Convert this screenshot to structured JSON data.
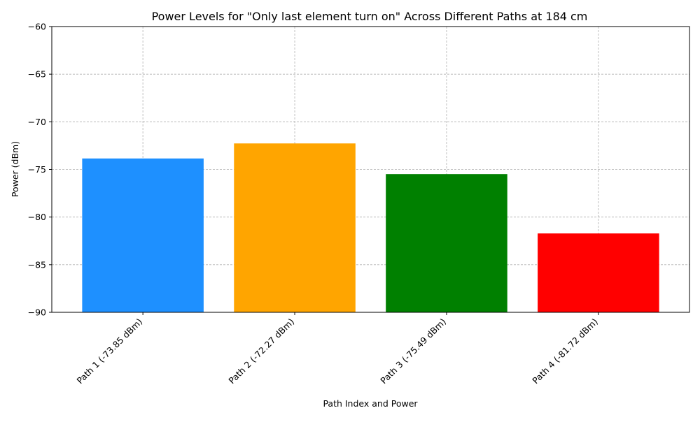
{
  "chart_data": {
    "type": "bar",
    "title": "Power Levels for \"Only last element turn on\" Across Different Paths at 184 cm",
    "xlabel": "Path Index and Power",
    "ylabel": "Power (dBm)",
    "categories": [
      "Path 1 (-73.85 dBm)",
      "Path 2 (-72.27 dBm)",
      "Path 3 (-75.49 dBm)",
      "Path 4 (-81.72 dBm)"
    ],
    "values": [
      -73.85,
      -72.27,
      -75.49,
      -81.72
    ],
    "colors": [
      "#1e90ff",
      "#ffa500",
      "#008000",
      "#ff0000"
    ],
    "ylim": [
      -90,
      -60
    ],
    "yticks": [
      -90,
      -85,
      -80,
      -75,
      -70,
      -65,
      -60
    ],
    "ytick_labels": [
      "−90",
      "−85",
      "−80",
      "−75",
      "−70",
      "−65",
      "−60"
    ],
    "grid": true,
    "legend": "none"
  }
}
